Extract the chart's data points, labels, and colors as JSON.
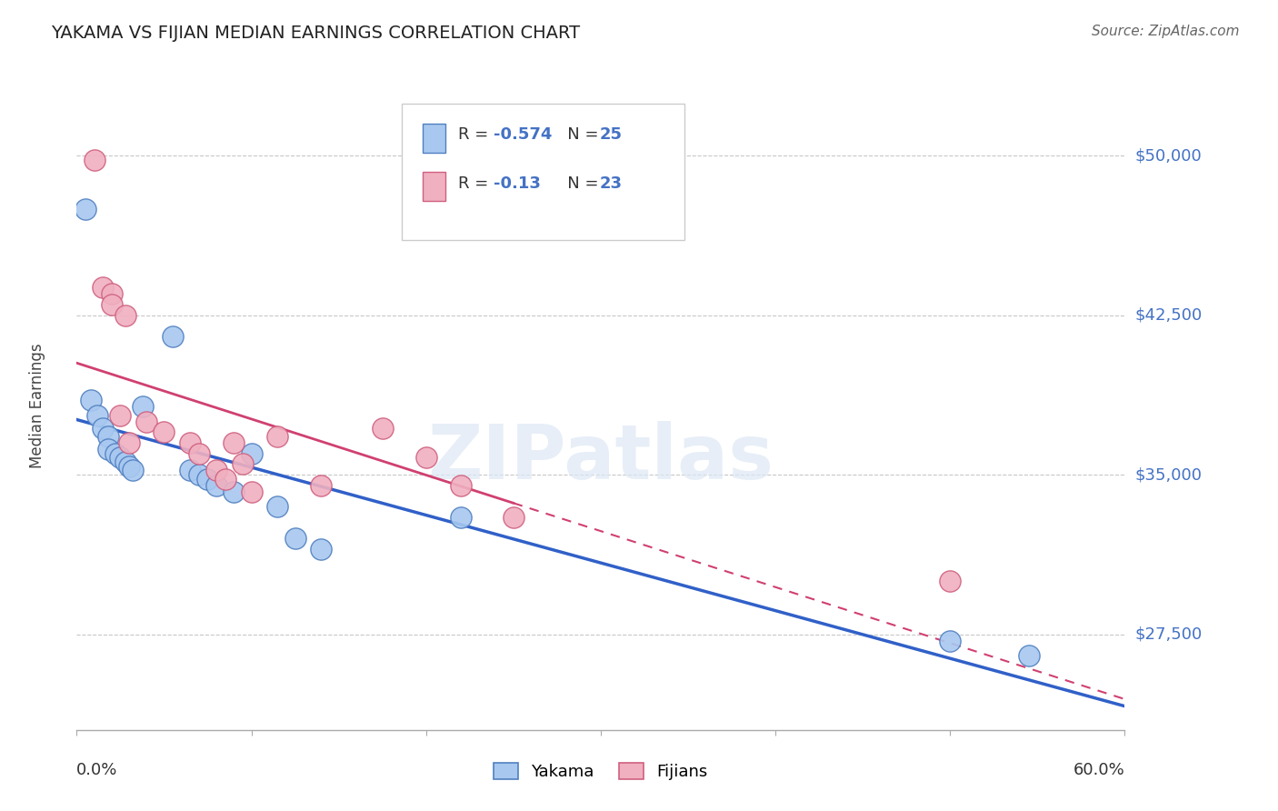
{
  "title": "YAKAMA VS FIJIAN MEDIAN EARNINGS CORRELATION CHART",
  "source": "Source: ZipAtlas.com",
  "ylabel": "Median Earnings",
  "legend_yakama": "Yakama",
  "legend_fijians": "Fijians",
  "r_yakama": -0.574,
  "n_yakama": 25,
  "r_fijian": -0.13,
  "n_fijian": 23,
  "y_ticks": [
    27500,
    35000,
    42500,
    50000
  ],
  "y_tick_labels": [
    "$27,500",
    "$35,000",
    "$42,500",
    "$50,000"
  ],
  "yakama_color": "#a8c8f0",
  "yakama_edge_color": "#5080c0",
  "yakama_line_color": "#3060c8",
  "fijian_color": "#f0b0c0",
  "fijian_edge_color": "#d06080",
  "fijian_line_color": "#d04070",
  "background_color": "#ffffff",
  "watermark": "ZIPatlas",
  "xlim": [
    0.0,
    0.6
  ],
  "ylim": [
    23000,
    53500
  ],
  "yakama_x": [
    0.005,
    0.008,
    0.012,
    0.015,
    0.018,
    0.018,
    0.022,
    0.025,
    0.028,
    0.03,
    0.032,
    0.038,
    0.055,
    0.065,
    0.07,
    0.075,
    0.08,
    0.09,
    0.1,
    0.115,
    0.125,
    0.14,
    0.22,
    0.5,
    0.545
  ],
  "yakama_y": [
    47500,
    38500,
    37800,
    37200,
    36800,
    36200,
    36000,
    35800,
    35600,
    35400,
    35200,
    38200,
    41500,
    35200,
    35000,
    34800,
    34500,
    34200,
    36000,
    33500,
    32000,
    31500,
    33000,
    27200,
    26500
  ],
  "fijian_x": [
    0.01,
    0.015,
    0.02,
    0.02,
    0.025,
    0.028,
    0.03,
    0.04,
    0.05,
    0.065,
    0.07,
    0.08,
    0.085,
    0.09,
    0.095,
    0.1,
    0.115,
    0.14,
    0.175,
    0.2,
    0.22,
    0.25,
    0.5
  ],
  "fijian_y": [
    49800,
    43800,
    43500,
    43000,
    37800,
    42500,
    36500,
    37500,
    37000,
    36500,
    36000,
    35200,
    34800,
    36500,
    35500,
    34200,
    36800,
    34500,
    37200,
    35800,
    34500,
    33000,
    30000
  ]
}
